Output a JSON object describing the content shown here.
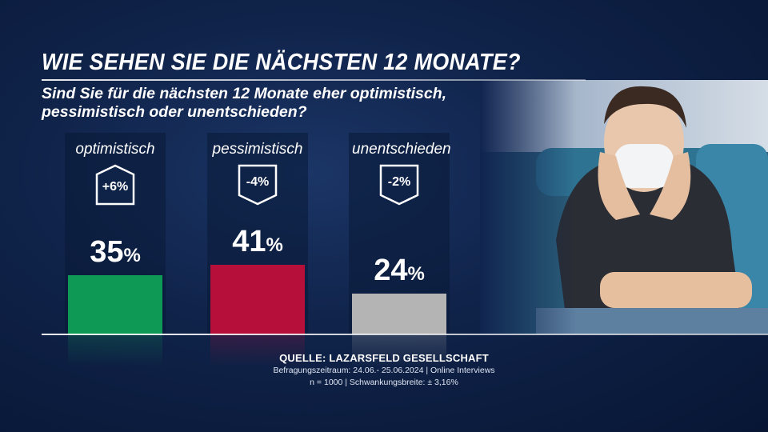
{
  "header": {
    "title": "WIE SEHEN SIE DIE NÄCHSTEN 12 MONATE?",
    "subtitle": "Sind Sie für die nächsten 12 Monate eher optimistisch, pessimistisch oder unentschieden?"
  },
  "chart_data": {
    "type": "bar",
    "title": "WIE SEHEN SIE DIE NÄCHSTEN 12 MONATE?",
    "categories": [
      "optimistisch",
      "pessimistisch",
      "unentschieden"
    ],
    "values": [
      35,
      41,
      24
    ],
    "value_labels": [
      "35",
      "41",
      "24"
    ],
    "unit": "%",
    "changes": [
      "+6%",
      "-4%",
      "-2%"
    ],
    "change_direction": [
      "up",
      "down",
      "down"
    ],
    "colors": [
      "#0e9a55",
      "#b50f3a",
      "#b4b4b4"
    ],
    "ylim": [
      0,
      100
    ],
    "grid": false,
    "legend": "none"
  },
  "source": {
    "line1": "QUELLE:  LAZARSFELD GESELLSCHAFT",
    "line2": "Befragungszeitraum: 24.06.- 25.06.2024 | Online Interviews",
    "line3": "n = 1000 |  Schwankungsbreite: ± 3,16%"
  },
  "photo": {
    "icon": "person-with-face-mask-photo"
  }
}
